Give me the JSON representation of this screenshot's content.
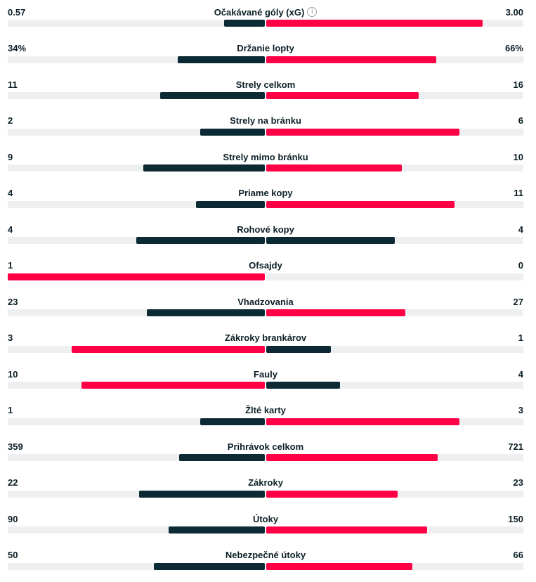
{
  "colors": {
    "leading": "#ff0046",
    "trailing": "#0c2a33",
    "track": "#eeeff0"
  },
  "stats": [
    {
      "name": "Očakávané góly (xG)",
      "home": "0.57",
      "away": "3.00",
      "home_val": 0.57,
      "away_val": 3.0,
      "info": true
    },
    {
      "name": "Držanie lopty",
      "home": "34%",
      "away": "66%",
      "home_val": 34,
      "away_val": 66
    },
    {
      "name": "Strely celkom",
      "home": "11",
      "away": "16",
      "home_val": 11,
      "away_val": 16
    },
    {
      "name": "Strely na bránku",
      "home": "2",
      "away": "6",
      "home_val": 2,
      "away_val": 6
    },
    {
      "name": "Strely mimo bránku",
      "home": "9",
      "away": "10",
      "home_val": 9,
      "away_val": 10
    },
    {
      "name": "Priame kopy",
      "home": "4",
      "away": "11",
      "home_val": 4,
      "away_val": 11
    },
    {
      "name": "Rohové kopy",
      "home": "4",
      "away": "4",
      "home_val": 4,
      "away_val": 4
    },
    {
      "name": "Ofsajdy",
      "home": "1",
      "away": "0",
      "home_val": 1,
      "away_val": 0
    },
    {
      "name": "Vhadzovania",
      "home": "23",
      "away": "27",
      "home_val": 23,
      "away_val": 27
    },
    {
      "name": "Zákroky brankárov",
      "home": "3",
      "away": "1",
      "home_val": 3,
      "away_val": 1
    },
    {
      "name": "Fauly",
      "home": "10",
      "away": "4",
      "home_val": 10,
      "away_val": 4
    },
    {
      "name": "Žlté karty",
      "home": "1",
      "away": "3",
      "home_val": 1,
      "away_val": 3
    },
    {
      "name": "Prihrávok celkom",
      "home": "359",
      "away": "721",
      "home_val": 359,
      "away_val": 721
    },
    {
      "name": "Zákroky",
      "home": "22",
      "away": "23",
      "home_val": 22,
      "away_val": 23
    },
    {
      "name": "Útoky",
      "home": "90",
      "away": "150",
      "home_val": 90,
      "away_val": 150
    },
    {
      "name": "Nebezpečné útoky",
      "home": "50",
      "away": "66",
      "home_val": 50,
      "away_val": 66
    }
  ]
}
